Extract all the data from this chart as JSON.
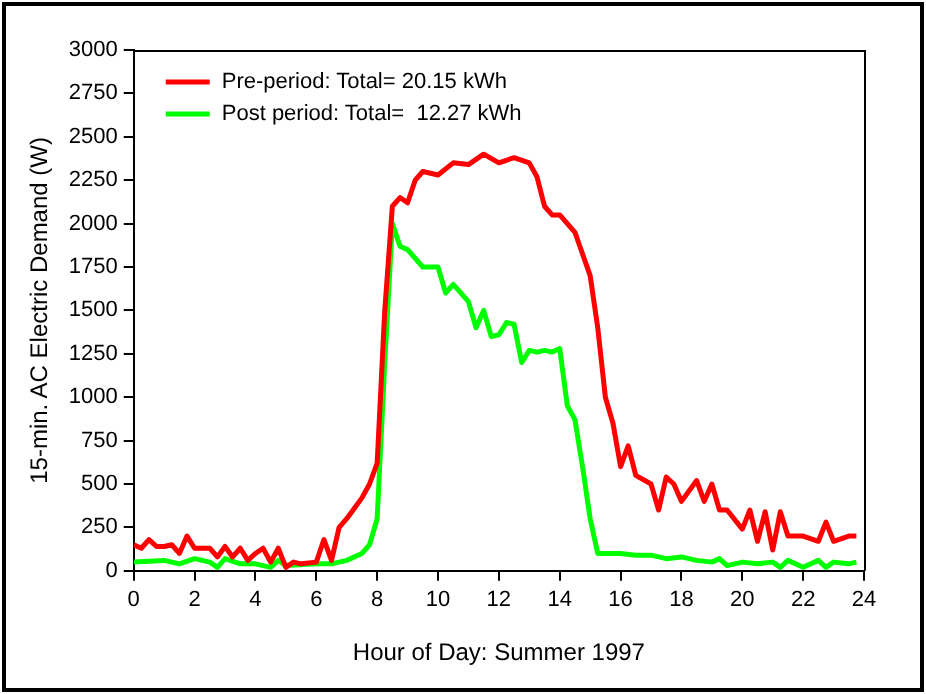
{
  "chart_data": {
    "type": "line",
    "xlabel": "Hour of Day: Summer 1997",
    "ylabel": "15-min. AC Electric Demand (W)",
    "xlim": [
      0,
      24
    ],
    "xticks": [
      0,
      2,
      4,
      6,
      8,
      10,
      12,
      14,
      16,
      18,
      20,
      22,
      24
    ],
    "ylim": [
      0,
      3000
    ],
    "yticks": [
      0,
      250,
      500,
      750,
      1000,
      1250,
      1500,
      1750,
      2000,
      2250,
      2500,
      2750,
      3000
    ],
    "grid": false,
    "legend": "top left",
    "marker": "none",
    "line_style": "solid",
    "series": [
      {
        "name": "Pre-period: Total= 20.15 kWh",
        "color": "#ff0000",
        "x": [
          0,
          0.25,
          0.5,
          0.75,
          1,
          1.25,
          1.5,
          1.75,
          2,
          2.5,
          2.75,
          3,
          3.25,
          3.5,
          3.75,
          4,
          4.25,
          4.5,
          4.75,
          5,
          5.25,
          5.5,
          6,
          6.25,
          6.5,
          6.75,
          7,
          7.5,
          7.75,
          8,
          8.25,
          8.5,
          8.75,
          9,
          9.25,
          9.5,
          10,
          10.5,
          11,
          11.5,
          12,
          12.5,
          13,
          13.25,
          13.5,
          13.75,
          14,
          14.5,
          15,
          15.25,
          15.5,
          15.75,
          16,
          16.25,
          16.5,
          17,
          17.25,
          17.5,
          17.75,
          18,
          18.5,
          18.75,
          19,
          19.25,
          19.5,
          20,
          20.25,
          20.5,
          20.75,
          21,
          21.25,
          21.5,
          22,
          22.5,
          22.75,
          23,
          23.5,
          23.75
        ],
        "values": [
          150,
          130,
          180,
          140,
          140,
          150,
          100,
          200,
          130,
          130,
          80,
          140,
          80,
          130,
          60,
          100,
          130,
          50,
          130,
          20,
          50,
          40,
          50,
          180,
          60,
          250,
          300,
          420,
          500,
          620,
          1500,
          2100,
          2150,
          2120,
          2250,
          2300,
          2280,
          2350,
          2340,
          2400,
          2350,
          2380,
          2350,
          2270,
          2100,
          2050,
          2050,
          1950,
          1700,
          1400,
          1000,
          850,
          600,
          720,
          550,
          500,
          350,
          540,
          500,
          400,
          520,
          400,
          500,
          350,
          350,
          240,
          350,
          170,
          340,
          120,
          340,
          200,
          200,
          170,
          280,
          170,
          200,
          200
        ]
      },
      {
        "name": "Post period: Total=  12.27 kWh",
        "color": "#00ff00",
        "x": [
          0,
          1,
          1.5,
          2,
          2.5,
          2.75,
          3,
          3.5,
          4,
          4.5,
          4.75,
          5,
          6,
          6.5,
          7,
          7.5,
          7.75,
          8,
          8.25,
          8.5,
          8.75,
          9,
          9.5,
          10,
          10.25,
          10.5,
          11,
          11.25,
          11.5,
          11.75,
          12,
          12.25,
          12.5,
          12.75,
          13,
          13.25,
          13.5,
          13.75,
          14,
          14.25,
          14.5,
          14.75,
          15,
          15.25,
          16,
          16.5,
          17,
          17.5,
          18,
          18.5,
          19,
          19.25,
          19.5,
          20,
          20.5,
          21,
          21.25,
          21.5,
          22,
          22.5,
          22.75,
          23,
          23.5,
          23.75
        ],
        "values": [
          50,
          60,
          40,
          70,
          50,
          20,
          70,
          40,
          40,
          20,
          60,
          30,
          40,
          40,
          60,
          100,
          150,
          300,
          1200,
          2000,
          1870,
          1850,
          1750,
          1750,
          1600,
          1650,
          1550,
          1400,
          1500,
          1350,
          1360,
          1430,
          1420,
          1200,
          1270,
          1260,
          1270,
          1260,
          1280,
          950,
          870,
          600,
          300,
          100,
          100,
          90,
          90,
          70,
          80,
          60,
          50,
          70,
          30,
          50,
          40,
          50,
          20,
          60,
          20,
          60,
          20,
          50,
          40,
          50
        ]
      }
    ]
  }
}
